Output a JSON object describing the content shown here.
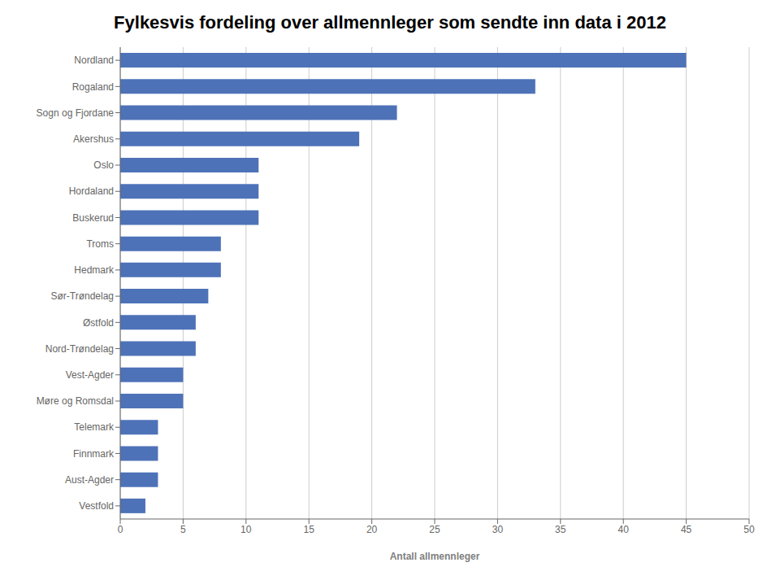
{
  "chart_data": {
    "type": "bar",
    "orientation": "horizontal",
    "title": "Fylkesvis fordeling over allmennleger som sendte inn data i 2012",
    "xlabel": "Antall allmennleger",
    "categories": [
      "Vestfold",
      "Aust-Agder",
      "Finnmark",
      "Telemark",
      "Møre og Romsdal",
      "Vest-Agder",
      "Nord-Trøndelag",
      "Østfold",
      "Sør-Trøndelag",
      "Hedmark",
      "Troms",
      "Buskerud",
      "Hordaland",
      "Oslo",
      "Akershus",
      "Sogn og Fjordane",
      "Rogaland",
      "Nordland"
    ],
    "values": [
      2,
      3,
      3,
      3,
      5,
      5,
      6,
      6,
      7,
      8,
      8,
      11,
      11,
      11,
      19,
      22,
      33,
      45
    ],
    "color": "#4E72B8",
    "xlim": [
      0,
      50
    ],
    "xticks": [
      0,
      5,
      10,
      15,
      20,
      25,
      30,
      35,
      40,
      45,
      50
    ],
    "grid": true
  }
}
